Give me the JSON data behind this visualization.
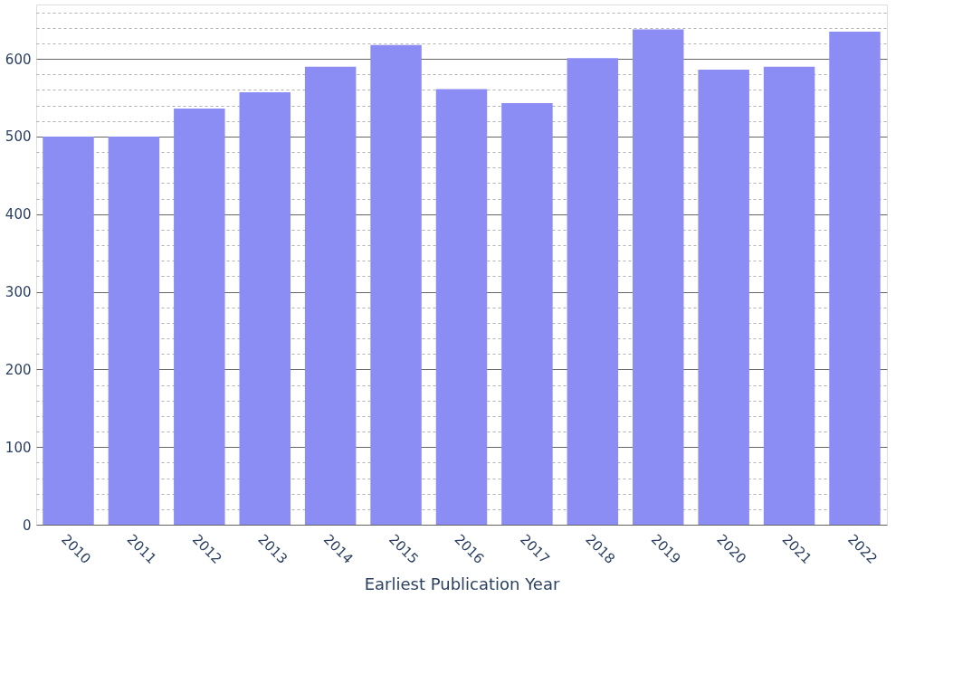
{
  "chart_data": {
    "type": "bar",
    "xlabel": "Earliest Publication Year",
    "categories": [
      "2010",
      "2011",
      "2012",
      "2013",
      "2014",
      "2015",
      "2016",
      "2017",
      "2018",
      "2019",
      "2020",
      "2021",
      "2022"
    ],
    "values": [
      500,
      500,
      536,
      557,
      590,
      618,
      561,
      543,
      601,
      638,
      586,
      590,
      635
    ],
    "color": "#8c8cf5",
    "ylim": [
      0,
      670
    ],
    "yticks": [
      0,
      {
        "value": 20,
        "label": null
      },
      {
        "value": 40,
        "label": null
      },
      {
        "value": 60,
        "label": null
      },
      {
        "value": 80,
        "label": null
      },
      100,
      {
        "value": 120,
        "label": null
      },
      {
        "value": 140,
        "label": null
      },
      {
        "value": 160,
        "label": null
      },
      {
        "value": 180,
        "label": null
      },
      200,
      {
        "value": 220,
        "label": null
      },
      {
        "value": 240,
        "label": null
      },
      {
        "value": 260,
        "label": null
      },
      {
        "value": 280,
        "label": null
      },
      300,
      {
        "value": 320,
        "label": null
      },
      {
        "value": 340,
        "label": null
      },
      {
        "value": 360,
        "label": null
      },
      {
        "value": 380,
        "label": null
      },
      400,
      {
        "value": 420,
        "label": null
      },
      {
        "value": 440,
        "label": null
      },
      {
        "value": 460,
        "label": null
      },
      {
        "value": 480,
        "label": null
      },
      500,
      {
        "value": 520,
        "label": null
      },
      {
        "value": 540,
        "label": null
      },
      {
        "value": 560,
        "label": null
      },
      {
        "value": 580,
        "label": null
      },
      600,
      {
        "value": 620,
        "label": null
      },
      {
        "value": 640,
        "label": null
      },
      {
        "value": 660,
        "label": null
      }
    ],
    "grid": "y"
  }
}
